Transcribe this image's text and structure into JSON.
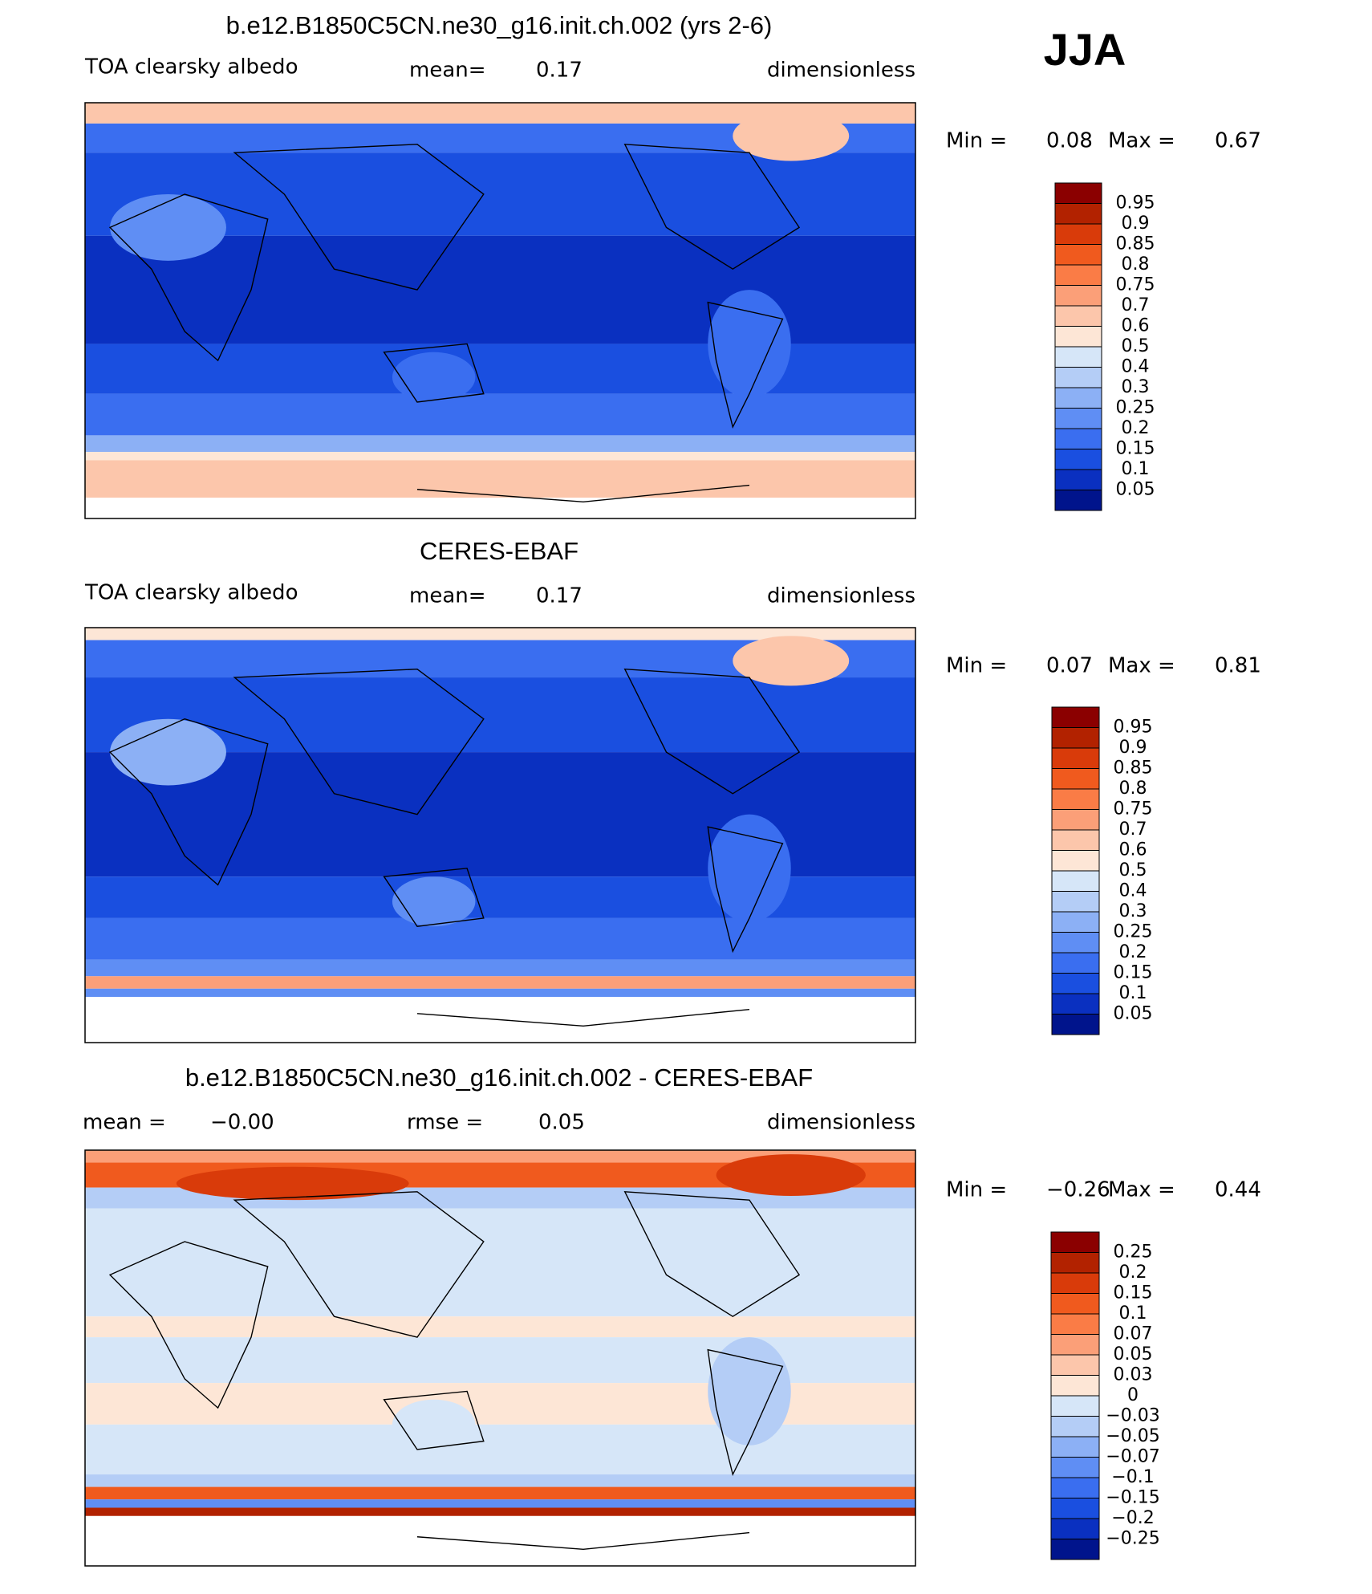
{
  "header": {
    "season": "JJA"
  },
  "colorbar_colors": [
    "#8b0000",
    "#b22200",
    "#d93b0a",
    "#f05a1e",
    "#fa7c46",
    "#fb9f78",
    "#fcc6ab",
    "#fde6d6",
    "#d6e6f8",
    "#b4cdf6",
    "#8cb0f5",
    "#5f8ef4",
    "#3a6ef0",
    "#1a4fe0",
    "#0a30c0",
    "#00148c"
  ],
  "panels": [
    {
      "title": "b.e12.B1850C5CN.ne30_g16.init.ch.002 (yrs 2-6)",
      "left_label": "TOA clearsky albedo",
      "stats": [
        {
          "label": "mean=",
          "value": "0.17"
        }
      ],
      "units": "dimensionless",
      "min_label": "Min =",
      "min": "0.08",
      "max_label": "Max =",
      "max": "0.67",
      "levels": [
        "0.95",
        "0.9",
        "0.85",
        "0.8",
        "0.75",
        "0.7",
        "0.6",
        "0.5",
        "0.4",
        "0.3",
        "0.25",
        "0.2",
        "0.15",
        "0.1",
        "0.05"
      ]
    },
    {
      "title": "CERES-EBAF",
      "left_label": "TOA clearsky albedo",
      "stats": [
        {
          "label": "mean=",
          "value": "0.17"
        }
      ],
      "units": "dimensionless",
      "min_label": "Min =",
      "min": "0.07",
      "max_label": "Max =",
      "max": "0.81",
      "levels": [
        "0.95",
        "0.9",
        "0.85",
        "0.8",
        "0.75",
        "0.7",
        "0.6",
        "0.5",
        "0.4",
        "0.3",
        "0.25",
        "0.2",
        "0.15",
        "0.1",
        "0.05"
      ]
    },
    {
      "title": "b.e12.B1850C5CN.ne30_g16.init.ch.002 - CERES-EBAF",
      "stats": [
        {
          "label": "mean =",
          "value": "−0.00"
        },
        {
          "label": "rmse =",
          "value": "0.05"
        }
      ],
      "units": "dimensionless",
      "min_label": "Min =",
      "min": "−0.26",
      "max_label": "Max =",
      "max": "0.44",
      "levels": [
        "0.25",
        "0.2",
        "0.15",
        "0.1",
        "0.07",
        "0.05",
        "0.03",
        "0",
        "−0.03",
        "−0.05",
        "−0.07",
        "−0.1",
        "−0.15",
        "−0.2",
        "−0.25"
      ]
    }
  ]
}
